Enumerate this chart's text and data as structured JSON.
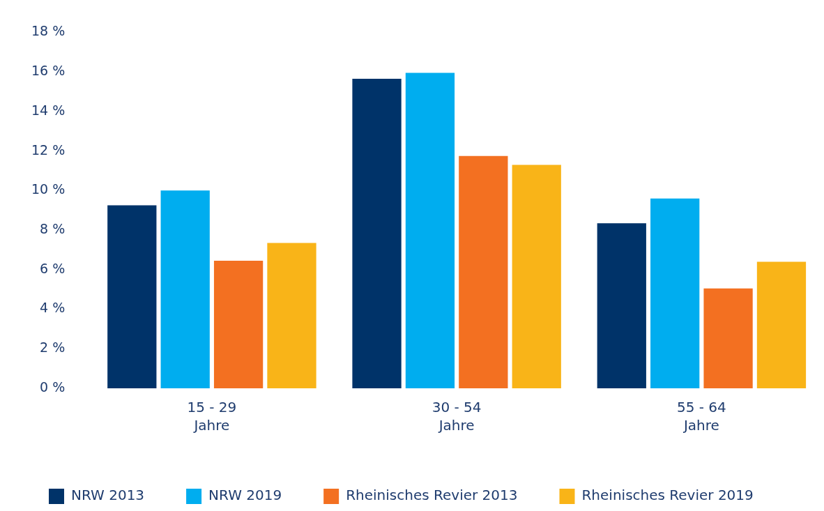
{
  "chart_data": {
    "type": "bar",
    "categories": [
      "15 - 29\nJahre",
      "30 - 54\nJahre",
      "55 - 64\nJahre"
    ],
    "series": [
      {
        "name": "NRW 2013",
        "color": "#003369",
        "values": [
          9.25,
          15.65,
          8.35
        ]
      },
      {
        "name": "NRW 2019",
        "color": "#00adef",
        "values": [
          10.0,
          15.95,
          9.6
        ]
      },
      {
        "name": "Rheinisches Revier 2013",
        "color": "#f37021",
        "values": [
          6.45,
          11.75,
          5.05
        ]
      },
      {
        "name": "Rheinisches Revier 2019",
        "color": "#f9b418",
        "values": [
          7.35,
          11.3,
          6.4
        ]
      }
    ],
    "ylim": [
      0,
      18
    ],
    "yticks": [
      {
        "value": 0,
        "label": "0 %"
      },
      {
        "value": 2,
        "label": "2 %"
      },
      {
        "value": 4,
        "label": "4 %"
      },
      {
        "value": 6,
        "label": "6 %"
      },
      {
        "value": 8,
        "label": "8 %"
      },
      {
        "value": 10,
        "label": "10 %"
      },
      {
        "value": 12,
        "label": "12 %"
      },
      {
        "value": 14,
        "label": "14 %"
      },
      {
        "value": 16,
        "label": "16 %"
      },
      {
        "value": 18,
        "label": "18 %"
      }
    ],
    "grid": false,
    "legend": "bottom"
  }
}
